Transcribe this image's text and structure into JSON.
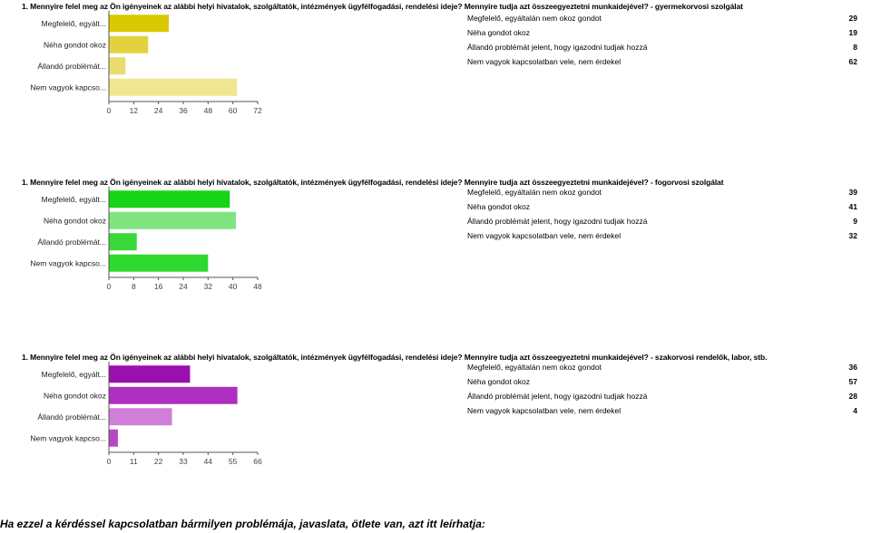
{
  "footer_text": "Ha ezzel a kérdéssel kapcsolatban bármilyen problémája, javaslata, ötlete van, azt itt leírhatja:",
  "chart_data": [
    {
      "type": "bar",
      "orientation": "horizontal",
      "title": "1. Mennyire felel meg az Ön igényeinek az alábbi helyi hivatalok, szolgáltatók, intézmények ügyfélfogadási, rendelési ideje? Mennyire tudja azt összeegyeztetni munkaidejével? - gyermekorvosi szolgálat",
      "categories": [
        "Megfelelő, egyált...",
        "Néha gondot okoz",
        "Állandó problémát...",
        "Nem vagyok kapcso..."
      ],
      "legend_labels": [
        "Megfelelő, egyáltalán nem okoz gondot",
        "Néha gondot okoz",
        "Állandó problémát jelent, hogy igazodni tudjak hozzá",
        "Nem vagyok kapcsolatban vele, nem érdekel"
      ],
      "values": [
        29,
        19,
        8,
        62
      ],
      "colors": [
        "#d9c900",
        "#e2d23f",
        "#e9dc6e",
        "#efe68f"
      ],
      "xlim": [
        0,
        72
      ],
      "xticks": [
        "0",
        "12",
        "24",
        "36",
        "48",
        "60",
        "72"
      ],
      "grid": false,
      "legend_position": "right"
    },
    {
      "type": "bar",
      "orientation": "horizontal",
      "title": "1. Mennyire felel meg az Ön igényeinek az alábbi helyi hivatalok, szolgáltatók, intézmények ügyfélfogadási, rendelési ideje? Mennyire tudja azt összeegyeztetni munkaidejével? - fogorvosi szolgálat",
      "categories": [
        "Megfelelő, egyált...",
        "Néha gondot okoz",
        "Állandó problémát...",
        "Nem vagyok kapcso..."
      ],
      "legend_labels": [
        "Megfelelő, egyáltalán nem okoz gondot",
        "Néha gondot okoz",
        "Állandó problémát jelent, hogy igazodni tudjak hozzá",
        "Nem vagyok kapcsolatban vele, nem érdekel"
      ],
      "values": [
        39,
        41,
        9,
        32
      ],
      "colors": [
        "#16d416",
        "#7fe47f",
        "#39d839",
        "#2fd82f"
      ],
      "xlim": [
        0,
        48
      ],
      "xticks": [
        "0",
        "8",
        "16",
        "24",
        "32",
        "40",
        "48"
      ],
      "grid": false,
      "legend_position": "right"
    },
    {
      "type": "bar",
      "orientation": "horizontal",
      "title": "1. Mennyire felel meg az Ön igényeinek az alábbi helyi hivatalok, szolgáltatók, intézmények ügyfélfogadási, rendelési ideje? Mennyire tudja azt összeegyeztetni munkaidejével? - szakorvosi rendelők, labor, stb.",
      "categories": [
        "Megfelelő, egyált...",
        "Néha gondot okoz",
        "Állandó problémát...",
        "Nem vagyok kapcso..."
      ],
      "legend_labels": [
        "Megfelelő, egyáltalán nem okoz gondot",
        "Néha gondot okoz",
        "Állandó problémát jelent, hogy igazodni tudjak hozzá",
        "Nem vagyok kapcsolatban vele, nem érdekel"
      ],
      "values": [
        36,
        57,
        28,
        4
      ],
      "colors": [
        "#9b0fae",
        "#ad2fc0",
        "#d17ed9",
        "#b648c6"
      ],
      "xlim": [
        0,
        66
      ],
      "xticks": [
        "0",
        "11",
        "22",
        "33",
        "44",
        "55",
        "66"
      ],
      "grid": false,
      "legend_position": "right"
    }
  ]
}
